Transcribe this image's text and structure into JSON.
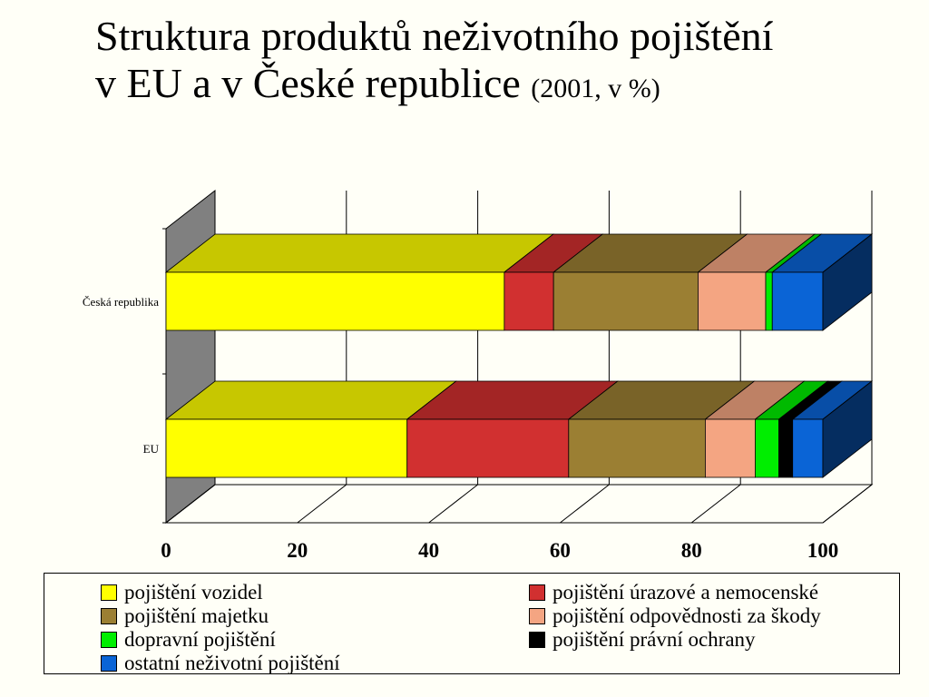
{
  "title": {
    "line1": "Struktura produktů neživotního pojištění",
    "line2": "v EU a v České republice",
    "subtitle": "(2001, v %)"
  },
  "chart_data": {
    "type": "bar",
    "orientation": "horizontal",
    "stacked": true,
    "three_d": true,
    "categories": [
      "Česká republika",
      "EU"
    ],
    "xlim": [
      0,
      100
    ],
    "xticks": [
      "0",
      "20",
      "40",
      "60",
      "80",
      "100"
    ],
    "grid": true,
    "legend_position": "bottom",
    "series": [
      {
        "name": "pojištění vozidel",
        "color": "#ffff00",
        "values": [
          51.5,
          36.7
        ]
      },
      {
        "name": "pojištění úrazové a nemocenské",
        "color": "#d13030",
        "values": [
          7.5,
          24.6
        ]
      },
      {
        "name": "pojištění majetku",
        "color": "#9b7f33",
        "values": [
          22.0,
          20.8
        ]
      },
      {
        "name": "pojištění odpovědnosti za škody",
        "color": "#f4a582",
        "values": [
          10.3,
          7.6
        ]
      },
      {
        "name": "dopravní pojištění",
        "color": "#00ee00",
        "values": [
          1.0,
          3.6
        ]
      },
      {
        "name": "pojištění právní ochrany",
        "color": "#000000",
        "values": [
          0.0,
          2.1
        ]
      },
      {
        "name": "ostatní neživotní pojištění",
        "color": "#0a64d6",
        "values": [
          7.7,
          4.6
        ]
      }
    ]
  }
}
